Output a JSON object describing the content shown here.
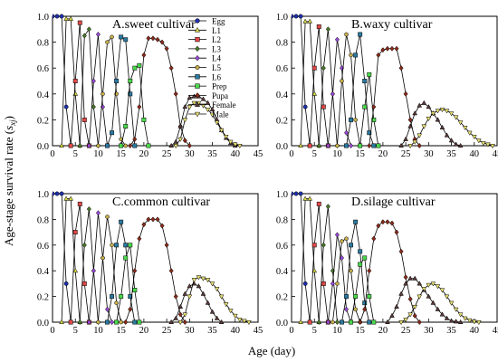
{
  "figure": {
    "ylabel_main": "Age-stage survival rate (",
    "ylabel_sym": "s",
    "ylabel_sub": "xj",
    "ylabel_close": ")",
    "xlabel": "Age (day)"
  },
  "legend": {
    "entries": [
      {
        "label": "Egg",
        "color": "#1f2fa8",
        "marker": "circle"
      },
      {
        "label": "L1",
        "color": "#d8d84a",
        "marker": "triangle-up"
      },
      {
        "label": "L2",
        "color": "#e04848",
        "marker": "square"
      },
      {
        "label": "L3",
        "color": "#4a7a2a",
        "marker": "diamond"
      },
      {
        "label": "L4",
        "color": "#9a4ad8",
        "marker": "diamond"
      },
      {
        "label": "L5",
        "color": "#c8b04a",
        "marker": "hexagon"
      },
      {
        "label": "L6",
        "color": "#2a7aa0",
        "marker": "square"
      },
      {
        "label": "Prep",
        "color": "#4ad84a",
        "marker": "square"
      },
      {
        "label": "Pupa",
        "color": "#8a2a1a",
        "marker": "diamond"
      },
      {
        "label": "Female",
        "color": "#5a3a3a",
        "marker": "triangle-up"
      },
      {
        "label": "Male",
        "color": "#e8e070",
        "marker": "triangle-down"
      }
    ]
  },
  "chart_data": [
    {
      "type": "line",
      "title": "A.sweet cultivar",
      "xlim": [
        0,
        45
      ],
      "ylim": [
        0,
        1.0
      ],
      "xticks": [
        0,
        5,
        10,
        15,
        20,
        25,
        30,
        35,
        40,
        45
      ],
      "yticks": [
        "0.0",
        "0.2",
        "0.4",
        "0.6",
        "0.8",
        "1.0"
      ],
      "series": [
        {
          "name": "Egg",
          "x": [
            0,
            1,
            2,
            3,
            4
          ],
          "y": [
            1.0,
            1.0,
            1.0,
            0.3,
            0.0
          ]
        },
        {
          "name": "L1",
          "x": [
            2,
            3,
            4,
            5,
            6
          ],
          "y": [
            0.0,
            0.98,
            0.98,
            0.4,
            0.0
          ]
        },
        {
          "name": "L2",
          "x": [
            4,
            5,
            6,
            7,
            8
          ],
          "y": [
            0.0,
            0.5,
            0.95,
            0.2,
            0.0
          ]
        },
        {
          "name": "L3",
          "x": [
            6,
            7,
            8,
            9,
            10
          ],
          "y": [
            0.0,
            0.85,
            0.9,
            0.3,
            0.0
          ]
        },
        {
          "name": "L4",
          "x": [
            8,
            9,
            10,
            11,
            12
          ],
          "y": [
            0.0,
            0.5,
            0.86,
            0.3,
            0.0
          ]
        },
        {
          "name": "L5",
          "x": [
            10,
            11,
            12,
            13,
            14,
            15,
            16
          ],
          "y": [
            0.0,
            0.4,
            0.8,
            0.84,
            0.4,
            0.05,
            0.0
          ]
        },
        {
          "name": "L6",
          "x": [
            12,
            13,
            14,
            15,
            16,
            17,
            18
          ],
          "y": [
            0.0,
            0.1,
            0.5,
            0.84,
            0.82,
            0.4,
            0.0
          ]
        },
        {
          "name": "Prep",
          "x": [
            15,
            16,
            17,
            18,
            19,
            20,
            21
          ],
          "y": [
            0.0,
            0.15,
            0.5,
            0.6,
            0.62,
            0.2,
            0.0
          ]
        },
        {
          "name": "Pupa",
          "x": [
            17,
            18,
            19,
            20,
            21,
            22,
            23,
            24,
            25,
            26,
            27,
            28,
            29,
            30
          ],
          "y": [
            0.0,
            0.05,
            0.3,
            0.7,
            0.83,
            0.83,
            0.82,
            0.8,
            0.75,
            0.6,
            0.4,
            0.15,
            0.04,
            0.0
          ]
        },
        {
          "name": "Female",
          "x": [
            26,
            27,
            28,
            29,
            30,
            31,
            32,
            33,
            34,
            35,
            36,
            37,
            38,
            39,
            40
          ],
          "y": [
            0.0,
            0.03,
            0.15,
            0.3,
            0.37,
            0.38,
            0.38,
            0.36,
            0.33,
            0.28,
            0.2,
            0.12,
            0.06,
            0.02,
            0.0
          ]
        },
        {
          "name": "Male",
          "x": [
            27,
            28,
            29,
            30,
            31,
            32,
            33,
            34,
            35,
            36,
            37,
            38,
            39,
            40,
            41
          ],
          "y": [
            0.0,
            0.05,
            0.2,
            0.3,
            0.33,
            0.33,
            0.31,
            0.28,
            0.24,
            0.18,
            0.12,
            0.07,
            0.03,
            0.01,
            0.0
          ]
        }
      ]
    },
    {
      "type": "line",
      "title": "B.waxy cultivar",
      "xlim": [
        0,
        45
      ],
      "ylim": [
        0,
        1.0
      ],
      "xticks": [
        0,
        5,
        10,
        15,
        20,
        25,
        30,
        35,
        40,
        45
      ],
      "yticks": [
        "0.0",
        "0.2",
        "0.4",
        "0.6",
        "0.8",
        "1.0"
      ],
      "series": [
        {
          "name": "Egg",
          "x": [
            0,
            1,
            2,
            3,
            4
          ],
          "y": [
            1.0,
            1.0,
            1.0,
            0.3,
            0.0
          ]
        },
        {
          "name": "L1",
          "x": [
            2,
            3,
            4,
            5,
            6
          ],
          "y": [
            0.0,
            0.96,
            0.96,
            0.4,
            0.0
          ]
        },
        {
          "name": "L2",
          "x": [
            4,
            5,
            6,
            7,
            8
          ],
          "y": [
            0.0,
            0.6,
            0.92,
            0.3,
            0.0
          ]
        },
        {
          "name": "L3",
          "x": [
            6,
            7,
            8,
            9,
            10
          ],
          "y": [
            0.0,
            0.6,
            0.9,
            0.4,
            0.0
          ]
        },
        {
          "name": "L4",
          "x": [
            8,
            9,
            10,
            11,
            12,
            13
          ],
          "y": [
            0.0,
            0.4,
            0.82,
            0.6,
            0.1,
            0.0
          ]
        },
        {
          "name": "L5",
          "x": [
            10,
            11,
            12,
            13,
            14,
            15
          ],
          "y": [
            0.0,
            0.5,
            0.86,
            0.7,
            0.2,
            0.0
          ]
        },
        {
          "name": "L6",
          "x": [
            12,
            13,
            14,
            15,
            16,
            17,
            18
          ],
          "y": [
            0.0,
            0.2,
            0.7,
            0.86,
            0.5,
            0.1,
            0.0
          ]
        },
        {
          "name": "Prep",
          "x": [
            15,
            16,
            17,
            18,
            19
          ],
          "y": [
            0.0,
            0.3,
            0.55,
            0.2,
            0.0
          ]
        },
        {
          "name": "Pupa",
          "x": [
            17,
            18,
            19,
            20,
            21,
            22,
            23,
            24,
            25,
            26,
            27,
            28
          ],
          "y": [
            0.0,
            0.3,
            0.7,
            0.74,
            0.75,
            0.75,
            0.75,
            0.6,
            0.4,
            0.2,
            0.05,
            0.0
          ]
        },
        {
          "name": "Female",
          "x": [
            24,
            25,
            26,
            27,
            28,
            29,
            30,
            31,
            32,
            33,
            34,
            35,
            36,
            37
          ],
          "y": [
            0.0,
            0.05,
            0.15,
            0.25,
            0.31,
            0.33,
            0.3,
            0.25,
            0.2,
            0.14,
            0.08,
            0.04,
            0.01,
            0.0
          ]
        },
        {
          "name": "Male",
          "x": [
            26,
            27,
            28,
            29,
            30,
            31,
            32,
            33,
            34,
            35,
            36,
            37,
            38,
            39,
            40,
            41,
            42,
            43,
            44
          ],
          "y": [
            0.0,
            0.03,
            0.08,
            0.15,
            0.21,
            0.25,
            0.27,
            0.28,
            0.27,
            0.25,
            0.22,
            0.18,
            0.14,
            0.1,
            0.07,
            0.04,
            0.02,
            0.01,
            0.0
          ]
        }
      ]
    },
    {
      "type": "line",
      "title": "C.common cultivar",
      "xlim": [
        0,
        45
      ],
      "ylim": [
        0,
        1.0
      ],
      "xticks": [
        0,
        5,
        10,
        15,
        20,
        25,
        30,
        35,
        40,
        45
      ],
      "yticks": [
        "0.0",
        "0.2",
        "0.4",
        "0.6",
        "0.8",
        "1.0"
      ],
      "series": [
        {
          "name": "Egg",
          "x": [
            0,
            1,
            2,
            3,
            4
          ],
          "y": [
            1.0,
            1.0,
            1.0,
            0.3,
            0.0
          ]
        },
        {
          "name": "L1",
          "x": [
            2,
            3,
            4,
            5,
            6
          ],
          "y": [
            0.0,
            0.96,
            0.96,
            0.4,
            0.0
          ]
        },
        {
          "name": "L2",
          "x": [
            4,
            5,
            6,
            7,
            8
          ],
          "y": [
            0.0,
            0.7,
            0.92,
            0.3,
            0.0
          ]
        },
        {
          "name": "L3",
          "x": [
            6,
            7,
            8,
            9,
            10
          ],
          "y": [
            0.0,
            0.6,
            0.88,
            0.4,
            0.0
          ]
        },
        {
          "name": "L4",
          "x": [
            8,
            9,
            10,
            11,
            12,
            13
          ],
          "y": [
            0.0,
            0.4,
            0.85,
            0.5,
            0.1,
            0.0
          ]
        },
        {
          "name": "L5",
          "x": [
            10,
            11,
            12,
            13,
            14,
            15
          ],
          "y": [
            0.0,
            0.5,
            0.82,
            0.6,
            0.15,
            0.0
          ]
        },
        {
          "name": "L6",
          "x": [
            12,
            13,
            14,
            15,
            16,
            17,
            18
          ],
          "y": [
            0.0,
            0.2,
            0.6,
            0.78,
            0.6,
            0.2,
            0.0
          ]
        },
        {
          "name": "Prep",
          "x": [
            14,
            15,
            16,
            17,
            18,
            19
          ],
          "y": [
            0.0,
            0.2,
            0.5,
            0.6,
            0.25,
            0.0
          ]
        },
        {
          "name": "Pupa",
          "x": [
            16,
            17,
            18,
            19,
            20,
            21,
            22,
            23,
            24,
            25,
            26,
            27,
            28,
            29
          ],
          "y": [
            0.0,
            0.1,
            0.4,
            0.65,
            0.76,
            0.8,
            0.8,
            0.8,
            0.75,
            0.6,
            0.4,
            0.2,
            0.06,
            0.0
          ]
        },
        {
          "name": "Female",
          "x": [
            26,
            27,
            28,
            29,
            30,
            31,
            32,
            33,
            34,
            35,
            36,
            37
          ],
          "y": [
            0.0,
            0.03,
            0.12,
            0.22,
            0.28,
            0.3,
            0.28,
            0.22,
            0.15,
            0.08,
            0.03,
            0.0
          ]
        },
        {
          "name": "Male",
          "x": [
            28,
            29,
            30,
            31,
            32,
            33,
            34,
            35,
            36,
            37,
            38,
            39,
            40,
            41,
            42,
            43
          ],
          "y": [
            0.0,
            0.06,
            0.2,
            0.33,
            0.35,
            0.34,
            0.33,
            0.3,
            0.26,
            0.2,
            0.14,
            0.09,
            0.05,
            0.02,
            0.01,
            0.0
          ]
        }
      ]
    },
    {
      "type": "line",
      "title": "D.silage cultivar",
      "xlim": [
        0,
        45
      ],
      "ylim": [
        0,
        1.0
      ],
      "xticks": [
        0,
        5,
        10,
        15,
        20,
        25,
        30,
        35,
        40,
        45
      ],
      "yticks": [
        "0.0",
        "0.2",
        "0.4",
        "0.6",
        "0.8",
        "1.0"
      ],
      "series": [
        {
          "name": "Egg",
          "x": [
            0,
            1,
            2,
            3,
            4
          ],
          "y": [
            1.0,
            1.0,
            1.0,
            0.3,
            0.0
          ]
        },
        {
          "name": "L1",
          "x": [
            2,
            3,
            4,
            5,
            6
          ],
          "y": [
            0.0,
            0.96,
            0.96,
            0.4,
            0.0
          ]
        },
        {
          "name": "L2",
          "x": [
            4,
            5,
            6,
            7,
            8
          ],
          "y": [
            0.0,
            0.6,
            0.92,
            0.3,
            0.0
          ]
        },
        {
          "name": "L3",
          "x": [
            6,
            7,
            8,
            9,
            10
          ],
          "y": [
            0.0,
            0.6,
            0.9,
            0.4,
            0.0
          ]
        },
        {
          "name": "L4",
          "x": [
            8,
            9,
            10,
            11,
            12,
            13
          ],
          "y": [
            0.0,
            0.3,
            0.68,
            0.5,
            0.1,
            0.0
          ]
        },
        {
          "name": "L5",
          "x": [
            9,
            10,
            11,
            12,
            13,
            14,
            15
          ],
          "y": [
            0.0,
            0.3,
            0.63,
            0.65,
            0.4,
            0.1,
            0.0
          ]
        },
        {
          "name": "L6",
          "x": [
            11,
            12,
            13,
            14,
            15,
            16,
            17
          ],
          "y": [
            0.0,
            0.2,
            0.6,
            0.78,
            0.55,
            0.15,
            0.0
          ]
        },
        {
          "name": "Prep",
          "x": [
            13,
            14,
            15,
            16,
            17,
            18
          ],
          "y": [
            0.0,
            0.2,
            0.45,
            0.5,
            0.2,
            0.0
          ]
        },
        {
          "name": "Pupa",
          "x": [
            15,
            16,
            17,
            18,
            19,
            20,
            21,
            22,
            23,
            24,
            25,
            26,
            27,
            28
          ],
          "y": [
            0.0,
            0.1,
            0.4,
            0.65,
            0.75,
            0.78,
            0.78,
            0.77,
            0.7,
            0.55,
            0.35,
            0.18,
            0.05,
            0.0
          ]
        },
        {
          "name": "Female",
          "x": [
            21,
            22,
            23,
            24,
            25,
            26,
            27,
            28,
            29,
            30,
            31,
            32,
            33,
            34,
            35,
            36,
            37
          ],
          "y": [
            0.0,
            0.05,
            0.12,
            0.22,
            0.3,
            0.34,
            0.34,
            0.3,
            0.25,
            0.2,
            0.15,
            0.1,
            0.06,
            0.03,
            0.01,
            0.005,
            0.0
          ]
        },
        {
          "name": "Male",
          "x": [
            24,
            25,
            26,
            27,
            28,
            29,
            30,
            31,
            32,
            33,
            34,
            35,
            36,
            37,
            38,
            39,
            40,
            41
          ],
          "y": [
            0.0,
            0.02,
            0.06,
            0.12,
            0.2,
            0.26,
            0.29,
            0.3,
            0.28,
            0.25,
            0.2,
            0.15,
            0.1,
            0.06,
            0.03,
            0.015,
            0.005,
            0.0
          ]
        }
      ]
    }
  ]
}
